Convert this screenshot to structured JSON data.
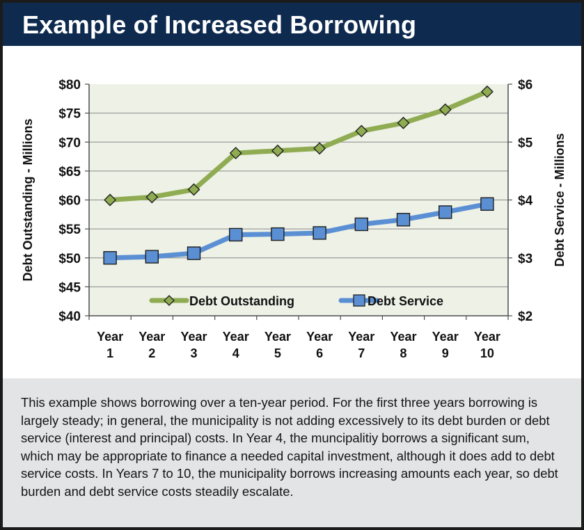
{
  "header": {
    "title": "Example of Increased Borrowing"
  },
  "chart_data": {
    "type": "line",
    "categories": [
      "Year 1",
      "Year 2",
      "Year 3",
      "Year 4",
      "Year 5",
      "Year 6",
      "Year 7",
      "Year 8",
      "Year 9",
      "Year 10"
    ],
    "category_lines": [
      [
        "Year",
        "1"
      ],
      [
        "Year",
        "2"
      ],
      [
        "Year",
        "3"
      ],
      [
        "Year",
        "4"
      ],
      [
        "Year",
        "5"
      ],
      [
        "Year",
        "6"
      ],
      [
        "Year",
        "7"
      ],
      [
        "Year",
        "8"
      ],
      [
        "Year",
        "9"
      ],
      [
        "Year",
        "10"
      ]
    ],
    "series": [
      {
        "name": "Debt Outstanding",
        "axis": "left",
        "color": "#8fac52",
        "marker": "diamond",
        "values": [
          60.0,
          60.5,
          61.8,
          68.1,
          68.5,
          68.9,
          71.9,
          73.3,
          75.6,
          78.7
        ]
      },
      {
        "name": "Debt Service",
        "axis": "right",
        "color": "#5b8fd4",
        "marker": "square",
        "values": [
          3.0,
          3.02,
          3.08,
          3.4,
          3.41,
          3.43,
          3.58,
          3.66,
          3.79,
          3.93
        ]
      }
    ],
    "y_left": {
      "label": "Debt Outstanding - Millions",
      "ylim": [
        40,
        80
      ],
      "ticks": [
        40,
        45,
        50,
        55,
        60,
        65,
        70,
        75,
        80
      ],
      "tick_labels": [
        "$40",
        "$45",
        "$50",
        "$55",
        "$60",
        "$65",
        "$70",
        "$75",
        "$80"
      ]
    },
    "y_right": {
      "label": "Debt Service - Millions",
      "ylim": [
        2,
        6
      ],
      "ticks": [
        2,
        3,
        4,
        5,
        6
      ],
      "tick_labels": [
        "$2",
        "$3",
        "$4",
        "$5",
        "$6"
      ]
    },
    "grid": true,
    "plot_background": "#edf1e6",
    "legend": "bottom-inside"
  },
  "caption": "This example shows borrowing over a ten-year period.  For the first three years borrowing is largely steady; in general, the municipality is not adding excessively to its debt burden or debt service (interest and principal) costs.  In Year 4, the muncipalitiy borrows a significant sum, which may be appropriate to finance a needed capital investment, although it does add to debt service costs.  In Years 7 to 10, the municipality borrows increasing amounts each year, so debt burden and debt service costs steadily escalate.",
  "colors": {
    "header_bg": "#0e2a4f",
    "frame": "#1b1b1b",
    "caption_bg": "#e3e4e5"
  }
}
